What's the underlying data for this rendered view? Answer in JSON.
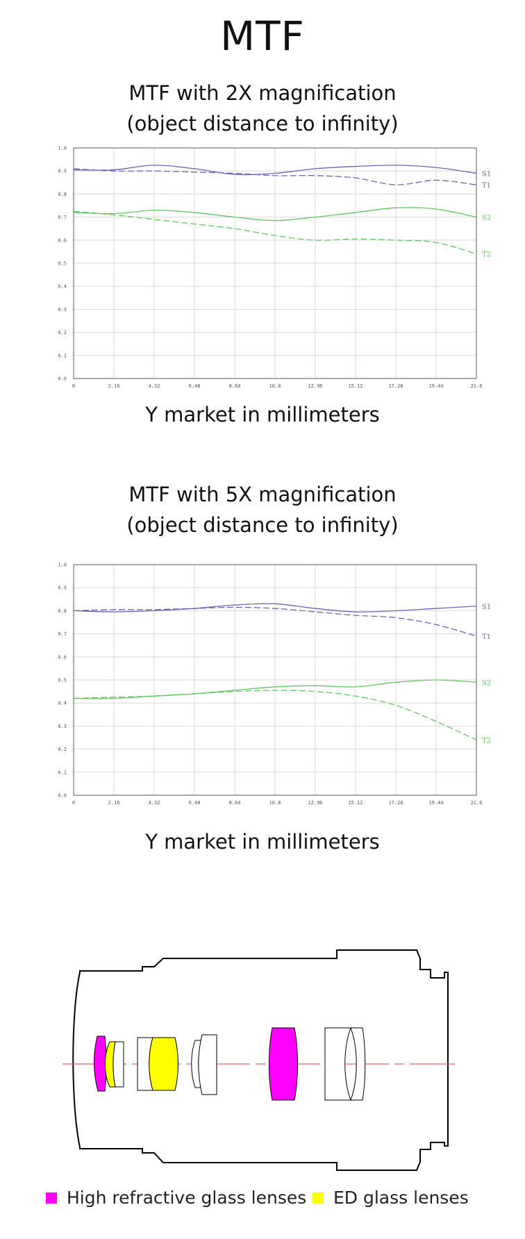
{
  "page_title": "MTF",
  "charts_meta": [
    {
      "title_line1": "MTF with 2X magnification",
      "title_line2": "(object distance to infinity)",
      "xcaption": "Y market in millimeters"
    },
    {
      "title_line1": "MTF with 5X magnification",
      "title_line2": "(object distance to infinity)",
      "xcaption": "Y market in millimeters"
    }
  ],
  "chart_data": [
    {
      "type": "line",
      "title": "MTF with 2X magnification (object distance to infinity)",
      "xlabel": "Y market in millimeters",
      "ylabel": "",
      "xlim": [
        0,
        21.6
      ],
      "ylim": [
        0,
        1.0
      ],
      "grid": true,
      "x_ticks": [
        "0",
        "2.16",
        "4.32",
        "6.48",
        "8.64",
        "10.8",
        "12.96",
        "15.12",
        "17.28",
        "19.44",
        "21.6"
      ],
      "y_ticks": [
        "0.0",
        "0.1",
        "0.2",
        "0.3",
        "0.4",
        "0.5",
        "0.6",
        "0.7",
        "0.8",
        "0.9",
        "1.0"
      ],
      "series": [
        {
          "name": "S1",
          "color": "#6a64b4",
          "dash": false,
          "x": [
            0,
            2.16,
            4.32,
            6.48,
            8.64,
            10.8,
            12.96,
            15.12,
            17.28,
            19.44,
            21.6
          ],
          "y": [
            0.905,
            0.905,
            0.925,
            0.91,
            0.885,
            0.89,
            0.91,
            0.92,
            0.925,
            0.915,
            0.89
          ]
        },
        {
          "name": "T1",
          "color": "#6a64b4",
          "dash": true,
          "x": [
            0,
            2.16,
            4.32,
            6.48,
            8.64,
            10.8,
            12.96,
            15.12,
            17.28,
            19.44,
            21.6
          ],
          "y": [
            0.91,
            0.9,
            0.9,
            0.895,
            0.89,
            0.88,
            0.88,
            0.87,
            0.84,
            0.86,
            0.84
          ]
        },
        {
          "name": "S2",
          "color": "#5ec85e",
          "dash": false,
          "x": [
            0,
            2.16,
            4.32,
            6.48,
            8.64,
            10.8,
            12.96,
            15.12,
            17.28,
            19.44,
            21.6
          ],
          "y": [
            0.72,
            0.715,
            0.73,
            0.72,
            0.7,
            0.685,
            0.7,
            0.72,
            0.74,
            0.735,
            0.7
          ]
        },
        {
          "name": "T2",
          "color": "#5ec85e",
          "dash": true,
          "x": [
            0,
            2.16,
            4.32,
            6.48,
            8.64,
            10.8,
            12.96,
            15.12,
            17.28,
            19.44,
            21.6
          ],
          "y": [
            0.725,
            0.71,
            0.69,
            0.67,
            0.65,
            0.62,
            0.6,
            0.605,
            0.6,
            0.59,
            0.54
          ]
        }
      ]
    },
    {
      "type": "line",
      "title": "MTF with 5X magnification (object distance to infinity)",
      "xlabel": "Y market in millimeters",
      "ylabel": "",
      "xlim": [
        0,
        21.6
      ],
      "ylim": [
        0,
        1.0
      ],
      "grid": true,
      "x_ticks": [
        "0",
        "2.16",
        "4.32",
        "6.48",
        "8.64",
        "10.8",
        "12.96",
        "15.12",
        "17.28",
        "19.44",
        "21.6"
      ],
      "y_ticks": [
        "0.0",
        "0.1",
        "0.2",
        "0.3",
        "0.4",
        "0.5",
        "0.6",
        "0.7",
        "0.8",
        "0.9",
        "1.0"
      ],
      "series": [
        {
          "name": "S1",
          "color": "#6a64b4",
          "dash": false,
          "x": [
            0,
            2.16,
            4.32,
            6.48,
            8.64,
            10.8,
            12.96,
            15.12,
            17.28,
            19.44,
            21.6
          ],
          "y": [
            0.8,
            0.795,
            0.8,
            0.81,
            0.825,
            0.83,
            0.81,
            0.795,
            0.8,
            0.81,
            0.82
          ]
        },
        {
          "name": "T1",
          "color": "#6a64b4",
          "dash": true,
          "x": [
            0,
            2.16,
            4.32,
            6.48,
            8.64,
            10.8,
            12.96,
            15.12,
            17.28,
            19.44,
            21.6
          ],
          "y": [
            0.8,
            0.805,
            0.805,
            0.81,
            0.815,
            0.81,
            0.795,
            0.78,
            0.77,
            0.74,
            0.69
          ]
        },
        {
          "name": "S2",
          "color": "#5ec85e",
          "dash": false,
          "x": [
            0,
            2.16,
            4.32,
            6.48,
            8.64,
            10.8,
            12.96,
            15.12,
            17.28,
            19.44,
            21.6
          ],
          "y": [
            0.42,
            0.42,
            0.43,
            0.44,
            0.455,
            0.47,
            0.475,
            0.47,
            0.49,
            0.5,
            0.49
          ]
        },
        {
          "name": "T2",
          "color": "#5ec85e",
          "dash": true,
          "x": [
            0,
            2.16,
            4.32,
            6.48,
            8.64,
            10.8,
            12.96,
            15.12,
            17.28,
            19.44,
            21.6
          ],
          "y": [
            0.42,
            0.425,
            0.43,
            0.44,
            0.45,
            0.455,
            0.45,
            0.43,
            0.39,
            0.32,
            0.24
          ]
        }
      ]
    }
  ],
  "diagram": {
    "colors": {
      "high_refractive": "#ff00ff",
      "ed": "#ffff00"
    }
  },
  "legend": [
    {
      "label": "High refractive glass lenses",
      "color": "#ff00ff"
    },
    {
      "label": "ED glass lenses",
      "color": "#ffff00"
    }
  ]
}
